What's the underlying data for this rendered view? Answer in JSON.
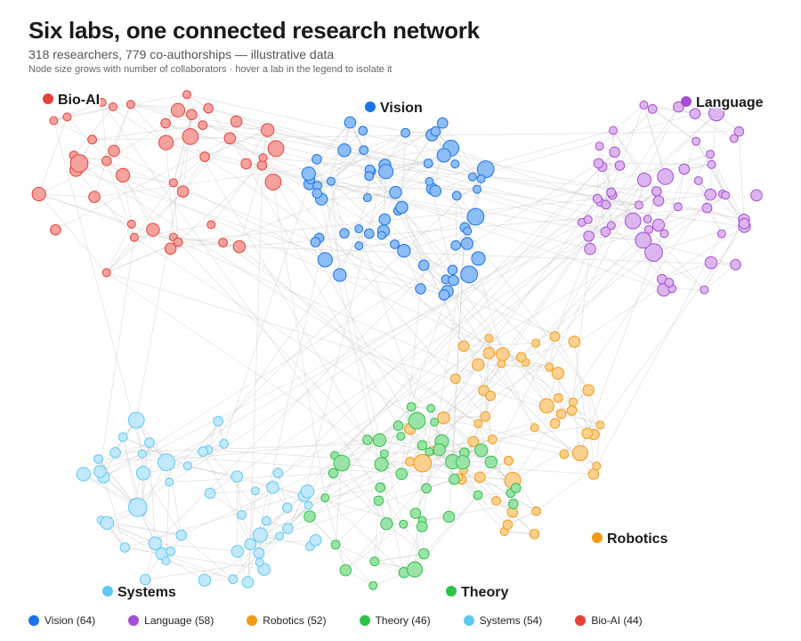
{
  "header": {
    "title": "Six labs, one connected research network",
    "subtitle": "318 researchers, 779 co-authorships — illustrative data",
    "note": "Node size grows with number of collaborators · hover a lab in the legend to isolate it"
  },
  "legend": [
    {
      "label": "Vision (64)",
      "color": "#1a73e8"
    },
    {
      "label": "Language (58)",
      "color": "#a64dd6"
    },
    {
      "label": "Robotics (52)",
      "color": "#f29a16"
    },
    {
      "label": "Theory (46)",
      "color": "#2ec24b"
    },
    {
      "label": "Systems (54)",
      "color": "#5ec8f5"
    },
    {
      "label": "Bio-AI (44)",
      "color": "#e8413a"
    }
  ],
  "chart_data": {
    "type": "network",
    "title": "Six labs, one connected research network",
    "totals": {
      "researchers": 318,
      "coauthorships": 779
    },
    "groups": [
      {
        "name": "Vision",
        "count": 64,
        "color": "#1a73e8",
        "fill": "#8dbdf7"
      },
      {
        "name": "Language",
        "count": 58,
        "color": "#a64dd6",
        "fill": "#dcb5ef"
      },
      {
        "name": "Robotics",
        "count": 52,
        "color": "#f29a16",
        "fill": "#fcd18f"
      },
      {
        "name": "Theory",
        "count": 46,
        "color": "#2ec24b",
        "fill": "#9ae3a7"
      },
      {
        "name": "Systems",
        "count": 54,
        "color": "#5ec8f5",
        "fill": "#c1e9fb"
      },
      {
        "name": "Bio-AI",
        "count": 44,
        "color": "#e8413a",
        "fill": "#f5a29d"
      }
    ],
    "labels": [
      "Vision",
      "Language",
      "Robotics",
      "Theory",
      "Systems",
      "Bio-AI"
    ]
  }
}
